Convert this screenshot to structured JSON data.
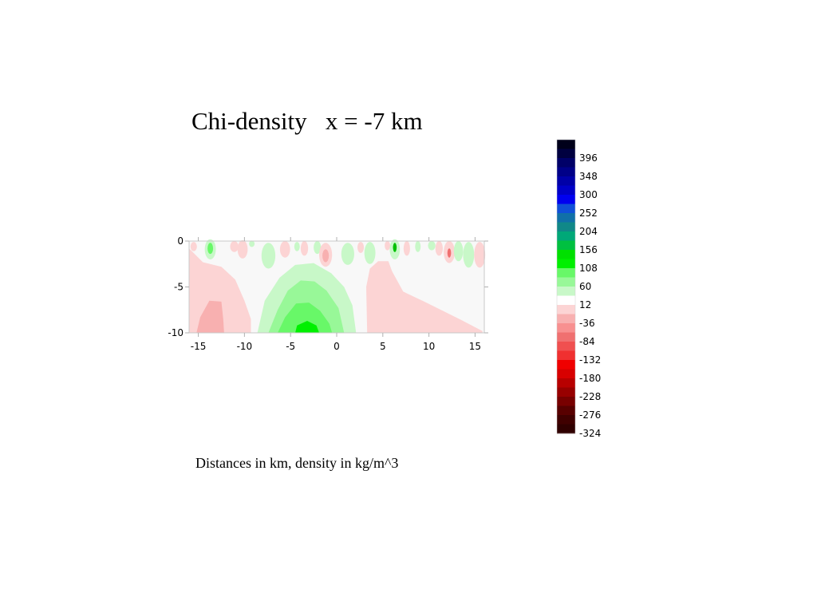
{
  "title": "Chi-density   x = -7 km",
  "subtitle": "Distances in km, density in kg/m^3",
  "chart_data": {
    "type": "heatmap",
    "title": "Chi-density   x = -7 km",
    "xlabel": "",
    "ylabel": "",
    "xlim": [
      -16,
      16
    ],
    "ylim": [
      -10,
      0
    ],
    "x_ticks": [
      -15,
      -10,
      -5,
      0,
      5,
      10,
      15
    ],
    "y_ticks": [
      0,
      -5,
      -10
    ],
    "x_tick_labels": [
      "-15",
      "-10",
      "-5",
      "0",
      "5",
      "10",
      "15"
    ],
    "y_tick_labels": [
      "0",
      "-5",
      "-10"
    ],
    "background_color": "#f8f8f8",
    "regions": [
      {
        "name": "negative-left",
        "level": -12,
        "color": "#fcd4d4",
        "outline": [
          [
            -16,
            -0.8
          ],
          [
            -14.5,
            -2.3
          ],
          [
            -12.5,
            -2.8
          ],
          [
            -11,
            -4.2
          ],
          [
            -10,
            -6.5
          ],
          [
            -9.3,
            -8.5
          ],
          [
            -9.3,
            -10
          ],
          [
            -16,
            -10
          ]
        ]
      },
      {
        "name": "negative-left-core",
        "level": -36,
        "color": "#f8b0b0",
        "outline": [
          [
            -15.2,
            -10
          ],
          [
            -14.8,
            -8.3
          ],
          [
            -13.8,
            -6.5
          ],
          [
            -12.5,
            -6.6
          ],
          [
            -12.3,
            -8.5
          ],
          [
            -12.2,
            -10
          ]
        ]
      },
      {
        "name": "negative-right",
        "level": -12,
        "color": "#fcd4d4",
        "outline": [
          [
            3.3,
            -10
          ],
          [
            3.2,
            -5
          ],
          [
            3.6,
            -3
          ],
          [
            4.5,
            -2.2
          ],
          [
            5.6,
            -2.2
          ],
          [
            6,
            -3.3
          ],
          [
            7.2,
            -5.5
          ],
          [
            9.5,
            -6.6
          ],
          [
            11.5,
            -7.6
          ],
          [
            13.5,
            -8.6
          ],
          [
            15.8,
            -9.8
          ],
          [
            15.8,
            -10
          ]
        ]
      },
      {
        "name": "positive-outer",
        "level": 12,
        "color": "#c8f8c8",
        "outline": [
          [
            -8.6,
            -10
          ],
          [
            -7.8,
            -6.5
          ],
          [
            -6.2,
            -4
          ],
          [
            -4.5,
            -2.6
          ],
          [
            -2.5,
            -2.4
          ],
          [
            -0.6,
            -3.5
          ],
          [
            0.8,
            -5
          ],
          [
            1.7,
            -7
          ],
          [
            2.1,
            -10
          ]
        ]
      },
      {
        "name": "positive-mid",
        "level": 36,
        "color": "#98f898",
        "outline": [
          [
            -7.4,
            -10
          ],
          [
            -6.4,
            -7.5
          ],
          [
            -5.3,
            -5.4
          ],
          [
            -3.9,
            -4.3
          ],
          [
            -2.4,
            -4.4
          ],
          [
            -1.1,
            -5.4
          ],
          [
            0.2,
            -7.3
          ],
          [
            0.8,
            -10
          ]
        ]
      },
      {
        "name": "positive-inner",
        "level": 60,
        "color": "#68f868",
        "outline": [
          [
            -6.4,
            -10
          ],
          [
            -5.6,
            -8.3
          ],
          [
            -4.4,
            -6.8
          ],
          [
            -3,
            -6.7
          ],
          [
            -1.8,
            -7.6
          ],
          [
            -0.8,
            -9
          ],
          [
            -0.5,
            -10
          ]
        ]
      },
      {
        "name": "positive-core",
        "level": 84,
        "color": "#00f000",
        "outline": [
          [
            -4.5,
            -10
          ],
          [
            -4.3,
            -9.2
          ],
          [
            -3.2,
            -8.7
          ],
          [
            -2.2,
            -9.2
          ],
          [
            -1.9,
            -10
          ]
        ]
      }
    ],
    "near_surface_anomalies": [
      {
        "x": -15.5,
        "y": -0.6,
        "rx": 0.35,
        "ry": 0.5,
        "color": "#fcd4d4"
      },
      {
        "x": -13.7,
        "y": -0.9,
        "rx": 0.6,
        "ry": 1.1,
        "color": "#c8f8c8"
      },
      {
        "x": -13.7,
        "y": -0.8,
        "rx": 0.3,
        "ry": 0.6,
        "color": "#68f868"
      },
      {
        "x": -11.1,
        "y": -0.6,
        "rx": 0.45,
        "ry": 0.6,
        "color": "#fcd4d4"
      },
      {
        "x": -10.2,
        "y": -0.9,
        "rx": 0.55,
        "ry": 1.0,
        "color": "#fcd4d4"
      },
      {
        "x": -9.2,
        "y": -0.3,
        "rx": 0.3,
        "ry": 0.35,
        "color": "#c8f8c8"
      },
      {
        "x": -7.4,
        "y": -1.6,
        "rx": 0.75,
        "ry": 1.4,
        "color": "#c8f8c8"
      },
      {
        "x": -5.6,
        "y": -0.9,
        "rx": 0.55,
        "ry": 0.9,
        "color": "#fcd4d4"
      },
      {
        "x": -4.3,
        "y": -0.6,
        "rx": 0.3,
        "ry": 0.5,
        "color": "#c8f8c8"
      },
      {
        "x": -3.5,
        "y": -0.8,
        "rx": 0.4,
        "ry": 0.8,
        "color": "#fcd4d4"
      },
      {
        "x": -2.1,
        "y": -0.7,
        "rx": 0.4,
        "ry": 0.7,
        "color": "#c8f8c8"
      },
      {
        "x": -1.2,
        "y": -1.5,
        "rx": 0.7,
        "ry": 1.3,
        "color": "#fcd4d4"
      },
      {
        "x": -1.2,
        "y": -1.6,
        "rx": 0.35,
        "ry": 0.7,
        "color": "#f8b0b0"
      },
      {
        "x": 1.2,
        "y": -1.4,
        "rx": 0.7,
        "ry": 1.2,
        "color": "#c8f8c8"
      },
      {
        "x": 2.6,
        "y": -0.7,
        "rx": 0.35,
        "ry": 0.6,
        "color": "#fcd4d4"
      },
      {
        "x": 3.6,
        "y": -1.3,
        "rx": 0.6,
        "ry": 1.2,
        "color": "#c8f8c8"
      },
      {
        "x": 5.5,
        "y": -0.5,
        "rx": 0.3,
        "ry": 0.5,
        "color": "#fcd4d4"
      },
      {
        "x": 6.3,
        "y": -0.9,
        "rx": 0.55,
        "ry": 1.1,
        "color": "#c8f8c8"
      },
      {
        "x": 6.3,
        "y": -0.7,
        "rx": 0.2,
        "ry": 0.5,
        "color": "#00c000"
      },
      {
        "x": 7.6,
        "y": -0.8,
        "rx": 0.35,
        "ry": 0.8,
        "color": "#fcd4d4"
      },
      {
        "x": 8.8,
        "y": -0.6,
        "rx": 0.3,
        "ry": 0.6,
        "color": "#c8f8c8"
      },
      {
        "x": 10.3,
        "y": -0.5,
        "rx": 0.4,
        "ry": 0.5,
        "color": "#c8f8c8"
      },
      {
        "x": 11.1,
        "y": -0.8,
        "rx": 0.4,
        "ry": 0.8,
        "color": "#fcd4d4"
      },
      {
        "x": 12.2,
        "y": -1.2,
        "rx": 0.6,
        "ry": 1.2,
        "color": "#fcd4d4"
      },
      {
        "x": 12.2,
        "y": -1.3,
        "rx": 0.2,
        "ry": 0.5,
        "color": "#f07070"
      },
      {
        "x": 13.2,
        "y": -1.1,
        "rx": 0.5,
        "ry": 1.1,
        "color": "#c8f8c8"
      },
      {
        "x": 14.3,
        "y": -1.5,
        "rx": 0.6,
        "ry": 1.4,
        "color": "#c8f8c8"
      },
      {
        "x": 15.5,
        "y": -1.5,
        "rx": 0.6,
        "ry": 1.4,
        "color": "#fcd4d4"
      }
    ],
    "colorbar": {
      "levels_top_to_bottom": [
        {
          "value": null,
          "color": "#00001a"
        },
        {
          "value": 396,
          "color": "#000040"
        },
        {
          "value": null,
          "color": "#000068"
        },
        {
          "value": 348,
          "color": "#000088"
        },
        {
          "value": null,
          "color": "#0000a8"
        },
        {
          "value": 300,
          "color": "#0000c8"
        },
        {
          "value": null,
          "color": "#0000f0"
        },
        {
          "value": 252,
          "color": "#1050d8"
        },
        {
          "value": null,
          "color": "#1070a8"
        },
        {
          "value": 204,
          "color": "#108888"
        },
        {
          "value": null,
          "color": "#00a878"
        },
        {
          "value": 156,
          "color": "#00c040"
        },
        {
          "value": null,
          "color": "#00e000"
        },
        {
          "value": 108,
          "color": "#00f000"
        },
        {
          "value": null,
          "color": "#68f868"
        },
        {
          "value": 60,
          "color": "#98f898"
        },
        {
          "value": null,
          "color": "#c8f8c8"
        },
        {
          "value": 12,
          "color": "#ffffff"
        },
        {
          "value": null,
          "color": "#fcd4d4"
        },
        {
          "value": -36,
          "color": "#f8b0b0"
        },
        {
          "value": null,
          "color": "#f89090"
        },
        {
          "value": -84,
          "color": "#f07070"
        },
        {
          "value": null,
          "color": "#f05050"
        },
        {
          "value": -132,
          "color": "#f03030"
        },
        {
          "value": null,
          "color": "#f00000"
        },
        {
          "value": -180,
          "color": "#d80000"
        },
        {
          "value": null,
          "color": "#b80000"
        },
        {
          "value": -228,
          "color": "#980000"
        },
        {
          "value": null,
          "color": "#780000"
        },
        {
          "value": -276,
          "color": "#580000"
        },
        {
          "value": null,
          "color": "#400000"
        },
        {
          "value": -324,
          "color": "#300000"
        }
      ],
      "labels": [
        "396",
        "348",
        "300",
        "252",
        "204",
        "156",
        "108",
        "60",
        "12",
        "-36",
        "-84",
        "-132",
        "-180",
        "-228",
        "-276",
        "-324"
      ]
    }
  }
}
